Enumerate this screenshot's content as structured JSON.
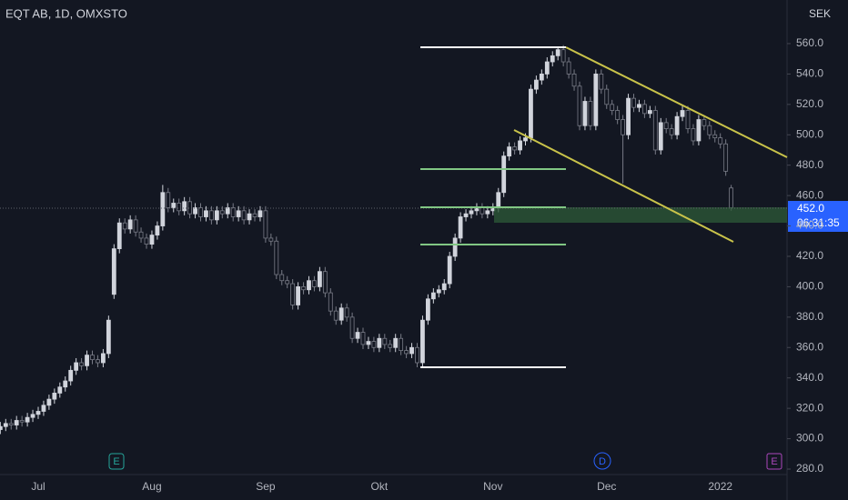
{
  "chart_data": {
    "type": "candlestick",
    "title": "EQT AB, 1D, OMXSTO",
    "currency": "SEK",
    "last_price_label": "452.0",
    "countdown": "06:31:35",
    "events": [
      {
        "label": "E"
      },
      {
        "label": "D"
      },
      {
        "label": "E"
      }
    ],
    "up_color": "#d1d4dc",
    "down_color": "#131722",
    "down_border": "#787b86",
    "ylim": [
      277.6,
      588.7
    ],
    "yticks": [
      {
        "value": 280,
        "label": "280.0"
      },
      {
        "value": 300,
        "label": "300.0"
      },
      {
        "value": 320,
        "label": "320.0"
      },
      {
        "value": 340,
        "label": "340.0"
      },
      {
        "value": 360,
        "label": "360.0"
      },
      {
        "value": 380,
        "label": "380.0"
      },
      {
        "value": 400,
        "label": "400.0"
      },
      {
        "value": 420,
        "label": "420.0"
      },
      {
        "value": 440,
        "label": "440.0"
      },
      {
        "value": 460,
        "label": "460.0"
      },
      {
        "value": 480,
        "label": "480.0"
      },
      {
        "value": 500,
        "label": "500.0"
      },
      {
        "value": 520,
        "label": "520.0"
      },
      {
        "value": 540,
        "label": "540.0"
      },
      {
        "value": 560,
        "label": "560.0"
      }
    ],
    "categories": [
      null,
      null,
      null,
      null,
      null,
      null,
      null,
      "Jul",
      null,
      null,
      null,
      null,
      null,
      null,
      null,
      null,
      null,
      null,
      null,
      null,
      null,
      null,
      null,
      null,
      null,
      null,
      null,
      null,
      "Aug",
      null,
      null,
      null,
      null,
      null,
      null,
      null,
      null,
      null,
      null,
      null,
      null,
      null,
      null,
      null,
      null,
      null,
      null,
      null,
      null,
      "Sep",
      null,
      null,
      null,
      null,
      null,
      null,
      null,
      null,
      null,
      null,
      null,
      null,
      null,
      null,
      null,
      null,
      null,
      null,
      null,
      null,
      "Okt",
      null,
      null,
      null,
      null,
      null,
      null,
      null,
      null,
      null,
      null,
      null,
      null,
      null,
      null,
      null,
      null,
      null,
      null,
      null,
      null,
      "Nov",
      null,
      null,
      null,
      null,
      null,
      null,
      null,
      null,
      null,
      null,
      null,
      null,
      null,
      null,
      null,
      null,
      null,
      null,
      null,
      null,
      "Dec",
      null,
      null,
      null,
      null,
      null,
      null,
      null,
      null,
      null,
      null,
      null,
      null,
      null,
      null,
      null,
      null,
      null,
      null,
      null,
      null,
      "2022",
      null,
      null
    ],
    "open": [
      306,
      308,
      310,
      309,
      312,
      311,
      314,
      316,
      318,
      322,
      326,
      330,
      334,
      338,
      345,
      350,
      348,
      355,
      352,
      350,
      356,
      395,
      425,
      442,
      438,
      444,
      436,
      432,
      428,
      434,
      440,
      462,
      452,
      455,
      450,
      456,
      448,
      452,
      446,
      450,
      444,
      450,
      448,
      452,
      446,
      450,
      444,
      448,
      446,
      450,
      432,
      430,
      408,
      404,
      402,
      388,
      400,
      398,
      404,
      400,
      410,
      396,
      384,
      378,
      386,
      380,
      366,
      370,
      362,
      364,
      360,
      366,
      362,
      360,
      366,
      358,
      356,
      360,
      350,
      378,
      392,
      396,
      398,
      402,
      420,
      432,
      446,
      448,
      450,
      452,
      448,
      450,
      452,
      462,
      486,
      492,
      490,
      496,
      498,
      530,
      536,
      540,
      548,
      552,
      556,
      548,
      540,
      532,
      506,
      522,
      506,
      540,
      530,
      520,
      516,
      510,
      500,
      524,
      518,
      520,
      514,
      516,
      490,
      508,
      504,
      500,
      512,
      516,
      504,
      496,
      510,
      506,
      500,
      498,
      494,
      465
    ],
    "high": [
      311,
      313,
      313,
      315,
      315,
      317,
      319,
      321,
      325,
      329,
      333,
      337,
      341,
      348,
      353,
      353,
      358,
      358,
      355,
      359,
      381,
      428,
      445,
      445,
      447,
      447,
      439,
      435,
      437,
      443,
      467,
      465,
      458,
      458,
      459,
      459,
      455,
      455,
      453,
      453,
      453,
      453,
      455,
      455,
      453,
      453,
      451,
      451,
      453,
      453,
      435,
      433,
      411,
      407,
      405,
      403,
      403,
      407,
      407,
      413,
      413,
      399,
      387,
      389,
      389,
      383,
      373,
      373,
      367,
      367,
      369,
      369,
      365,
      369,
      369,
      361,
      363,
      363,
      381,
      395,
      399,
      401,
      405,
      423,
      435,
      449,
      451,
      453,
      455,
      455,
      453,
      455,
      465,
      489,
      495,
      495,
      499,
      501,
      533,
      539,
      543,
      551,
      555,
      558,
      559,
      551,
      543,
      535,
      525,
      525,
      543,
      543,
      533,
      523,
      519,
      513,
      527,
      527,
      523,
      523,
      519,
      519,
      511,
      511,
      507,
      515,
      519,
      519,
      507,
      513,
      513,
      509,
      503,
      501,
      497,
      467
    ],
    "low": [
      303,
      305,
      306,
      306,
      308,
      308,
      311,
      313,
      315,
      319,
      323,
      327,
      331,
      335,
      342,
      345,
      345,
      349,
      347,
      347,
      353,
      392,
      422,
      435,
      435,
      433,
      429,
      425,
      425,
      431,
      437,
      449,
      449,
      447,
      447,
      445,
      445,
      443,
      443,
      441,
      441,
      445,
      445,
      443,
      443,
      441,
      441,
      443,
      443,
      429,
      427,
      405,
      401,
      399,
      385,
      385,
      395,
      395,
      397,
      397,
      393,
      381,
      375,
      375,
      377,
      363,
      363,
      359,
      359,
      357,
      357,
      359,
      357,
      357,
      355,
      353,
      353,
      347,
      347,
      375,
      389,
      393,
      395,
      399,
      417,
      429,
      443,
      445,
      447,
      445,
      445,
      447,
      449,
      459,
      483,
      487,
      487,
      493,
      495,
      527,
      533,
      537,
      545,
      549,
      545,
      537,
      529,
      503,
      503,
      503,
      503,
      527,
      517,
      513,
      507,
      468,
      497,
      515,
      515,
      511,
      511,
      487,
      487,
      501,
      497,
      497,
      509,
      501,
      493,
      493,
      503,
      497,
      495,
      491,
      473,
      450
    ],
    "close": [
      308,
      310,
      309,
      312,
      311,
      314,
      316,
      318,
      322,
      326,
      330,
      334,
      338,
      345,
      350,
      348,
      355,
      352,
      350,
      356,
      378,
      425,
      442,
      438,
      444,
      436,
      432,
      428,
      434,
      440,
      462,
      452,
      455,
      450,
      456,
      448,
      452,
      446,
      450,
      444,
      450,
      448,
      452,
      446,
      450,
      444,
      448,
      446,
      450,
      432,
      430,
      408,
      404,
      402,
      388,
      400,
      398,
      404,
      400,
      410,
      396,
      384,
      378,
      386,
      380,
      366,
      370,
      362,
      364,
      360,
      366,
      362,
      360,
      366,
      358,
      356,
      360,
      350,
      378,
      392,
      396,
      398,
      402,
      420,
      432,
      446,
      448,
      450,
      452,
      448,
      450,
      452,
      462,
      486,
      492,
      490,
      496,
      498,
      530,
      536,
      540,
      548,
      552,
      556,
      548,
      540,
      532,
      506,
      522,
      506,
      540,
      530,
      520,
      516,
      510,
      500,
      524,
      518,
      520,
      514,
      516,
      490,
      508,
      504,
      500,
      512,
      516,
      504,
      496,
      510,
      506,
      500,
      498,
      494,
      476,
      452
    ]
  }
}
